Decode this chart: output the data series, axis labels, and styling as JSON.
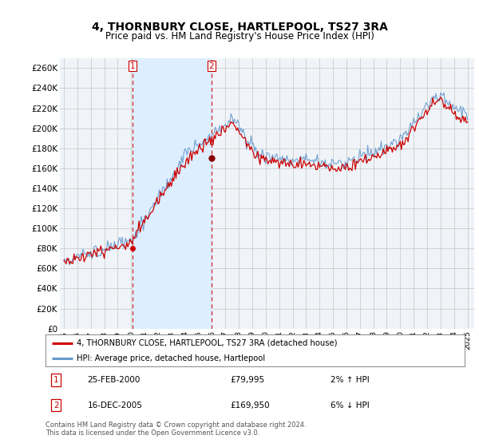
{
  "title": "4, THORNBURY CLOSE, HARTLEPOOL, TS27 3RA",
  "subtitle": "Price paid vs. HM Land Registry's House Price Index (HPI)",
  "title_fontsize": 10,
  "subtitle_fontsize": 8.5,
  "red_label": "4, THORNBURY CLOSE, HARTLEPOOL, TS27 3RA (detached house)",
  "blue_label": "HPI: Average price, detached house, Hartlepool",
  "annotation1_num": "1",
  "annotation1_date": "25-FEB-2000",
  "annotation1_price": "£79,995",
  "annotation1_hpi": "2% ↑ HPI",
  "annotation2_num": "2",
  "annotation2_date": "16-DEC-2005",
  "annotation2_price": "£169,950",
  "annotation2_hpi": "6% ↓ HPI",
  "footer": "Contains HM Land Registry data © Crown copyright and database right 2024.\nThis data is licensed under the Open Government Licence v3.0.",
  "red_color": "#cc0000",
  "blue_color": "#6699cc",
  "shade_color": "#ddeeff",
  "background_color": "#ffffff",
  "plot_bg_color": "#f0f4f8",
  "grid_color": "#cccccc",
  "ylim": [
    0,
    270000
  ],
  "yticks": [
    0,
    20000,
    40000,
    60000,
    80000,
    100000,
    120000,
    140000,
    160000,
    180000,
    200000,
    220000,
    240000,
    260000
  ],
  "ytick_labels": [
    "£0",
    "£20K",
    "£40K",
    "£60K",
    "£80K",
    "£100K",
    "£120K",
    "£140K",
    "£160K",
    "£180K",
    "£200K",
    "£220K",
    "£240K",
    "£260K"
  ],
  "purchase1_year": 2000.12,
  "purchase1_price": 79995,
  "purchase2_year": 2005.96,
  "purchase2_price": 169950,
  "xmin": 1994.7,
  "xmax": 2025.5
}
